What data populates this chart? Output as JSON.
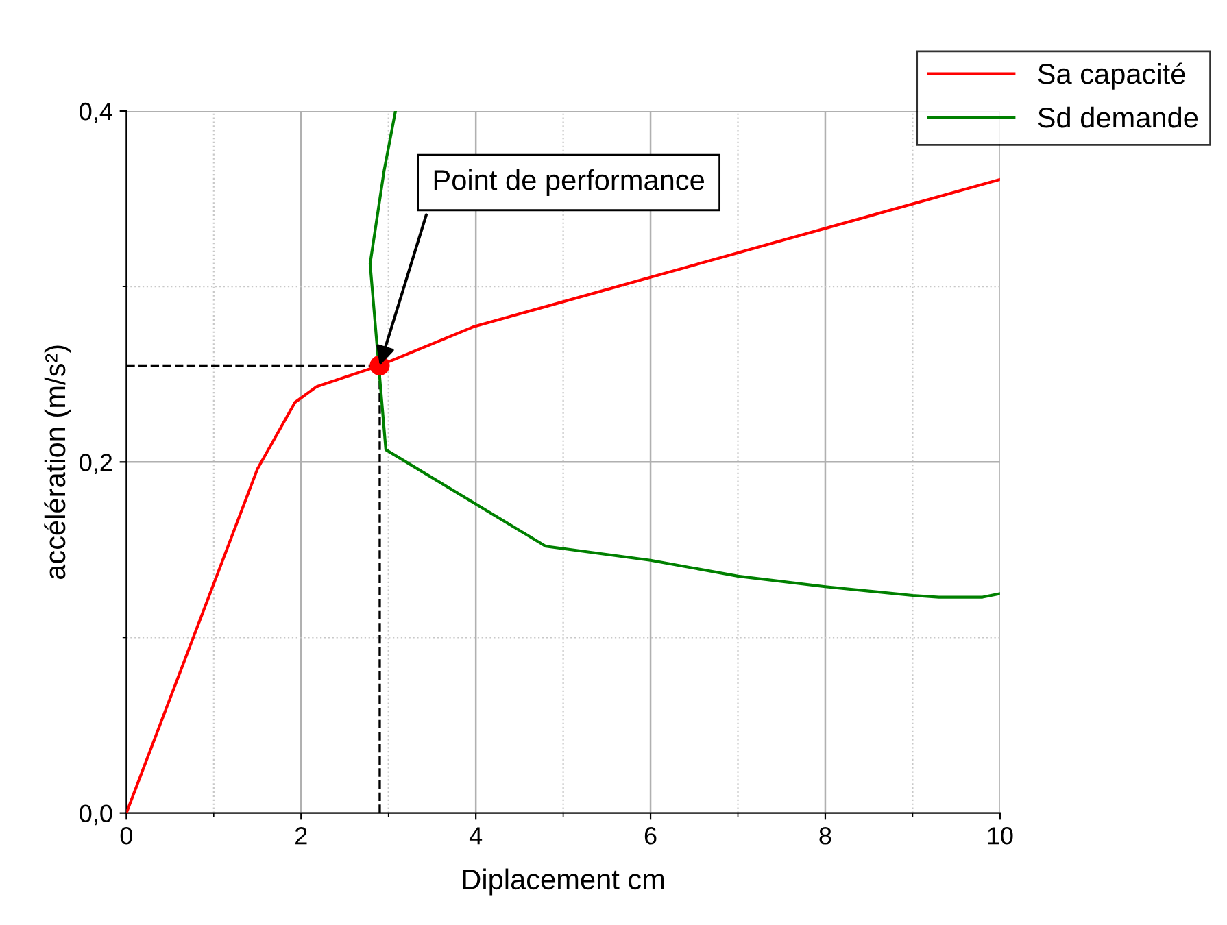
{
  "chart_data": {
    "type": "line",
    "xlabel": "Diplacement cm",
    "ylabel": "accélération (m/s²)",
    "xlim": [
      0,
      10
    ],
    "ylim": [
      0,
      0.4
    ],
    "xticks": [
      0,
      2,
      4,
      6,
      8,
      10
    ],
    "yticks": [
      {
        "value": 0,
        "label": "0,0"
      },
      {
        "value": 0.2,
        "label": "0,2"
      },
      {
        "value": 0.4,
        "label": "0,4"
      }
    ],
    "grid": true,
    "legend": "top right",
    "series": [
      {
        "name": "Sa capacité",
        "color": "#ff0000",
        "x": [
          0,
          1.5,
          1.93,
          2.18,
          2.9,
          3.97,
          10
        ],
        "values": [
          0,
          0.196,
          0.234,
          0.243,
          0.255,
          0.277,
          0.361
        ]
      },
      {
        "name": "Sd demande",
        "color": "#008000",
        "x": [
          3.08,
          2.95,
          2.79,
          2.97,
          4.8,
          6.0,
          7.0,
          8.0,
          9.0,
          9.3,
          9.8,
          10
        ],
        "values": [
          0.4,
          0.366,
          0.313,
          0.207,
          0.152,
          0.144,
          0.135,
          0.129,
          0.124,
          0.123,
          0.123,
          0.125
        ]
      },
      {
        "type": "scatter",
        "color": "#ff0000",
        "marker": "circle",
        "x": [
          2.9
        ],
        "values": [
          0.255
        ]
      }
    ],
    "ref_lines": [
      {
        "axis": "x",
        "value": 2.9,
        "color": "#000000",
        "line_style": "dashed"
      },
      {
        "axis": "y",
        "value": 0.255,
        "color": "#000000",
        "line_style": "dashed"
      }
    ],
    "annotations": [
      {
        "text": "Point de performance",
        "x": 2.9,
        "y": 0.255
      }
    ]
  }
}
